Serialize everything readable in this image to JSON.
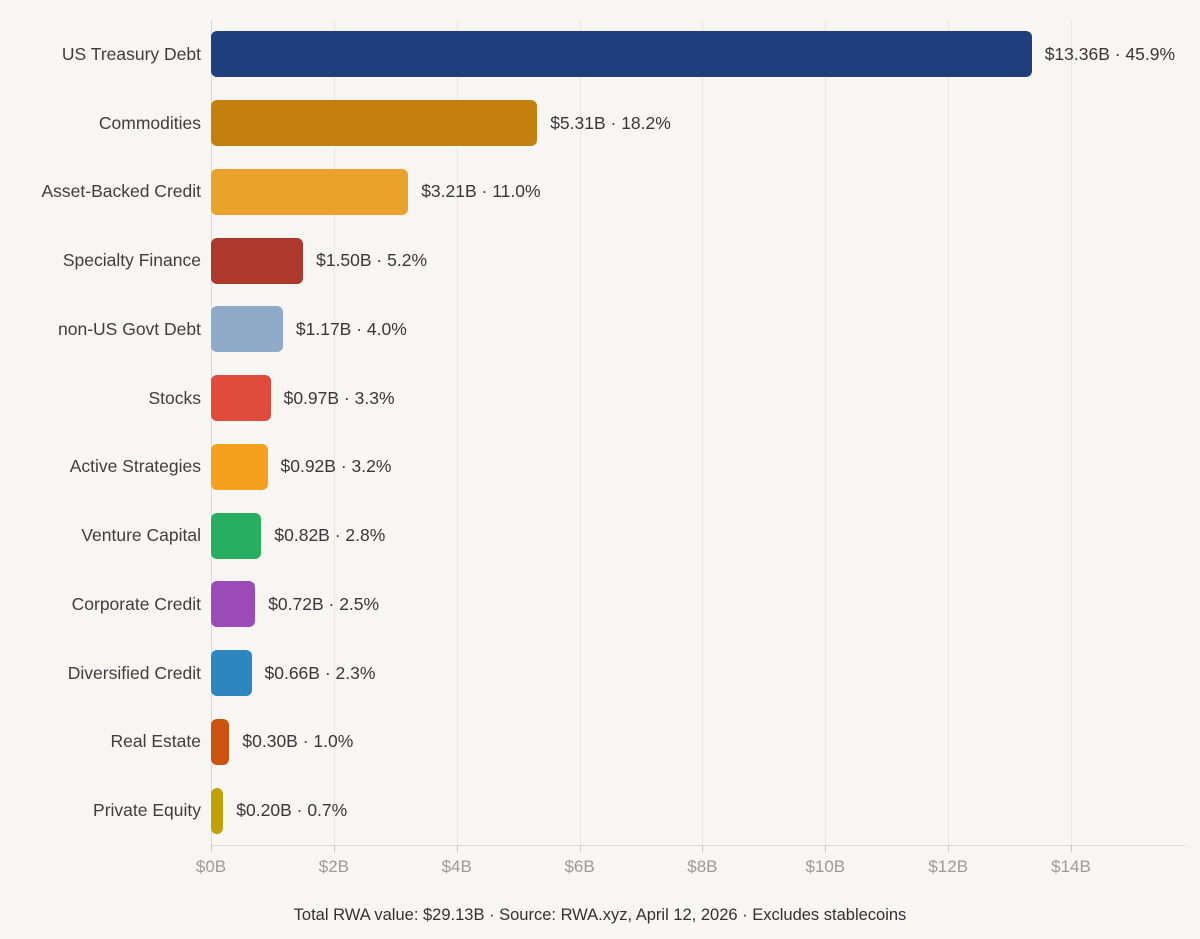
{
  "chart_data": {
    "type": "bar",
    "orientation": "horizontal",
    "title": "",
    "xlabel": "",
    "ylabel": "",
    "xlim": [
      0,
      14
    ],
    "grid": true,
    "legend": false,
    "categories": [
      "US Treasury Debt",
      "Commodities",
      "Asset-Backed Credit",
      "Specialty Finance",
      "non-US Govt Debt",
      "Stocks",
      "Active Strategies",
      "Venture Capital",
      "Corporate Credit",
      "Diversified Credit",
      "Real Estate",
      "Private Equity"
    ],
    "values": [
      13.36,
      5.31,
      3.21,
      1.5,
      1.17,
      0.97,
      0.92,
      0.82,
      0.72,
      0.66,
      0.3,
      0.2
    ],
    "percentages": [
      45.9,
      18.2,
      11.0,
      5.2,
      4.0,
      3.3,
      3.2,
      2.8,
      2.5,
      2.3,
      1.0,
      0.7
    ],
    "value_labels": [
      "$13.36B · 45.9%",
      "$5.31B · 18.2%",
      "$3.21B · 11.0%",
      "$1.50B · 5.2%",
      "$1.17B · 4.0%",
      "$0.97B · 3.3%",
      "$0.92B · 3.2%",
      "$0.82B · 2.8%",
      "$0.72B · 2.5%",
      "$0.66B · 2.3%",
      "$0.30B · 1.0%",
      "$0.20B · 0.7%"
    ],
    "bar_colors": [
      "#1f3e7c",
      "#c4800f",
      "#e9a22a",
      "#ad382c",
      "#8fa9c9",
      "#e04b3b",
      "#f5a11d",
      "#27ae60",
      "#9b4bb5",
      "#2e86c1",
      "#cc5210",
      "#c2a106"
    ],
    "x_ticks": [
      {
        "value": 0,
        "label": "$0B"
      },
      {
        "value": 2,
        "label": "$2B"
      },
      {
        "value": 4,
        "label": "$4B"
      },
      {
        "value": 6,
        "label": "$6B"
      },
      {
        "value": 8,
        "label": "$8B"
      },
      {
        "value": 10,
        "label": "$10B"
      },
      {
        "value": 12,
        "label": "$12B"
      },
      {
        "value": 14,
        "label": "$14B"
      }
    ],
    "footer": "Total RWA value: $29.13B  ·  Source: RWA.xyz, April 12, 2026  ·  Excludes stablecoins"
  },
  "colors": {
    "background": "#f7f6f3",
    "gridline": "#e9e8e4",
    "axis_line": "#dad9d5",
    "category_label": "#3e3e3e",
    "value_label": "#383838",
    "tick_label": "#9b9b9b",
    "footer_text": "#323232"
  }
}
